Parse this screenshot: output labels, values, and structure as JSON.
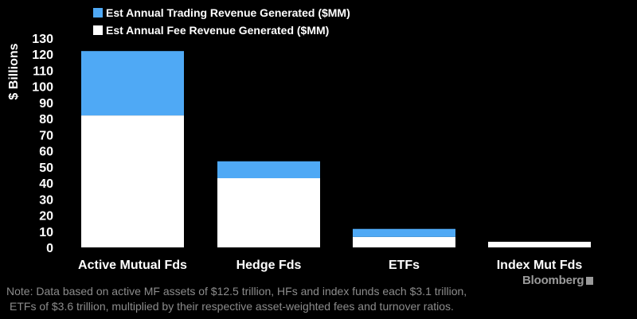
{
  "chart_data": {
    "type": "bar",
    "stacked": true,
    "categories": [
      "Active Mutual Fds",
      "Hedge Fds",
      "ETFs",
      "Index Mut Fds"
    ],
    "series": [
      {
        "name": "Est Annual Fee Revenue Generated ($MM)",
        "color": "#ffffff",
        "values": [
          82,
          43,
          6.5,
          3.5
        ]
      },
      {
        "name": "Est Annual Trading Revenue Generated ($MM)",
        "color": "#4fa9f5",
        "values": [
          40,
          10.5,
          5,
          0
        ]
      }
    ],
    "ylabel": "$ Billions",
    "ylim": [
      0,
      130
    ],
    "yticks": [
      "0",
      "10",
      "20",
      "30",
      "40",
      "50",
      "60",
      "70",
      "80",
      "90",
      "100",
      "110",
      "120",
      "130"
    ],
    "grid": false,
    "legend_position": "top-left"
  },
  "footnote": {
    "lines": [
      "Note: Data based on active MF assets of $12.5 trillion, HFs and index funds each $3.1 trillion,",
      "ETFs of $3.6 trillion, multiplied by their respective asset-weighted fees and turnover ratios."
    ]
  },
  "brand": {
    "name": "Bloomberg",
    "icon": "bloomberg-terminal-icon"
  }
}
